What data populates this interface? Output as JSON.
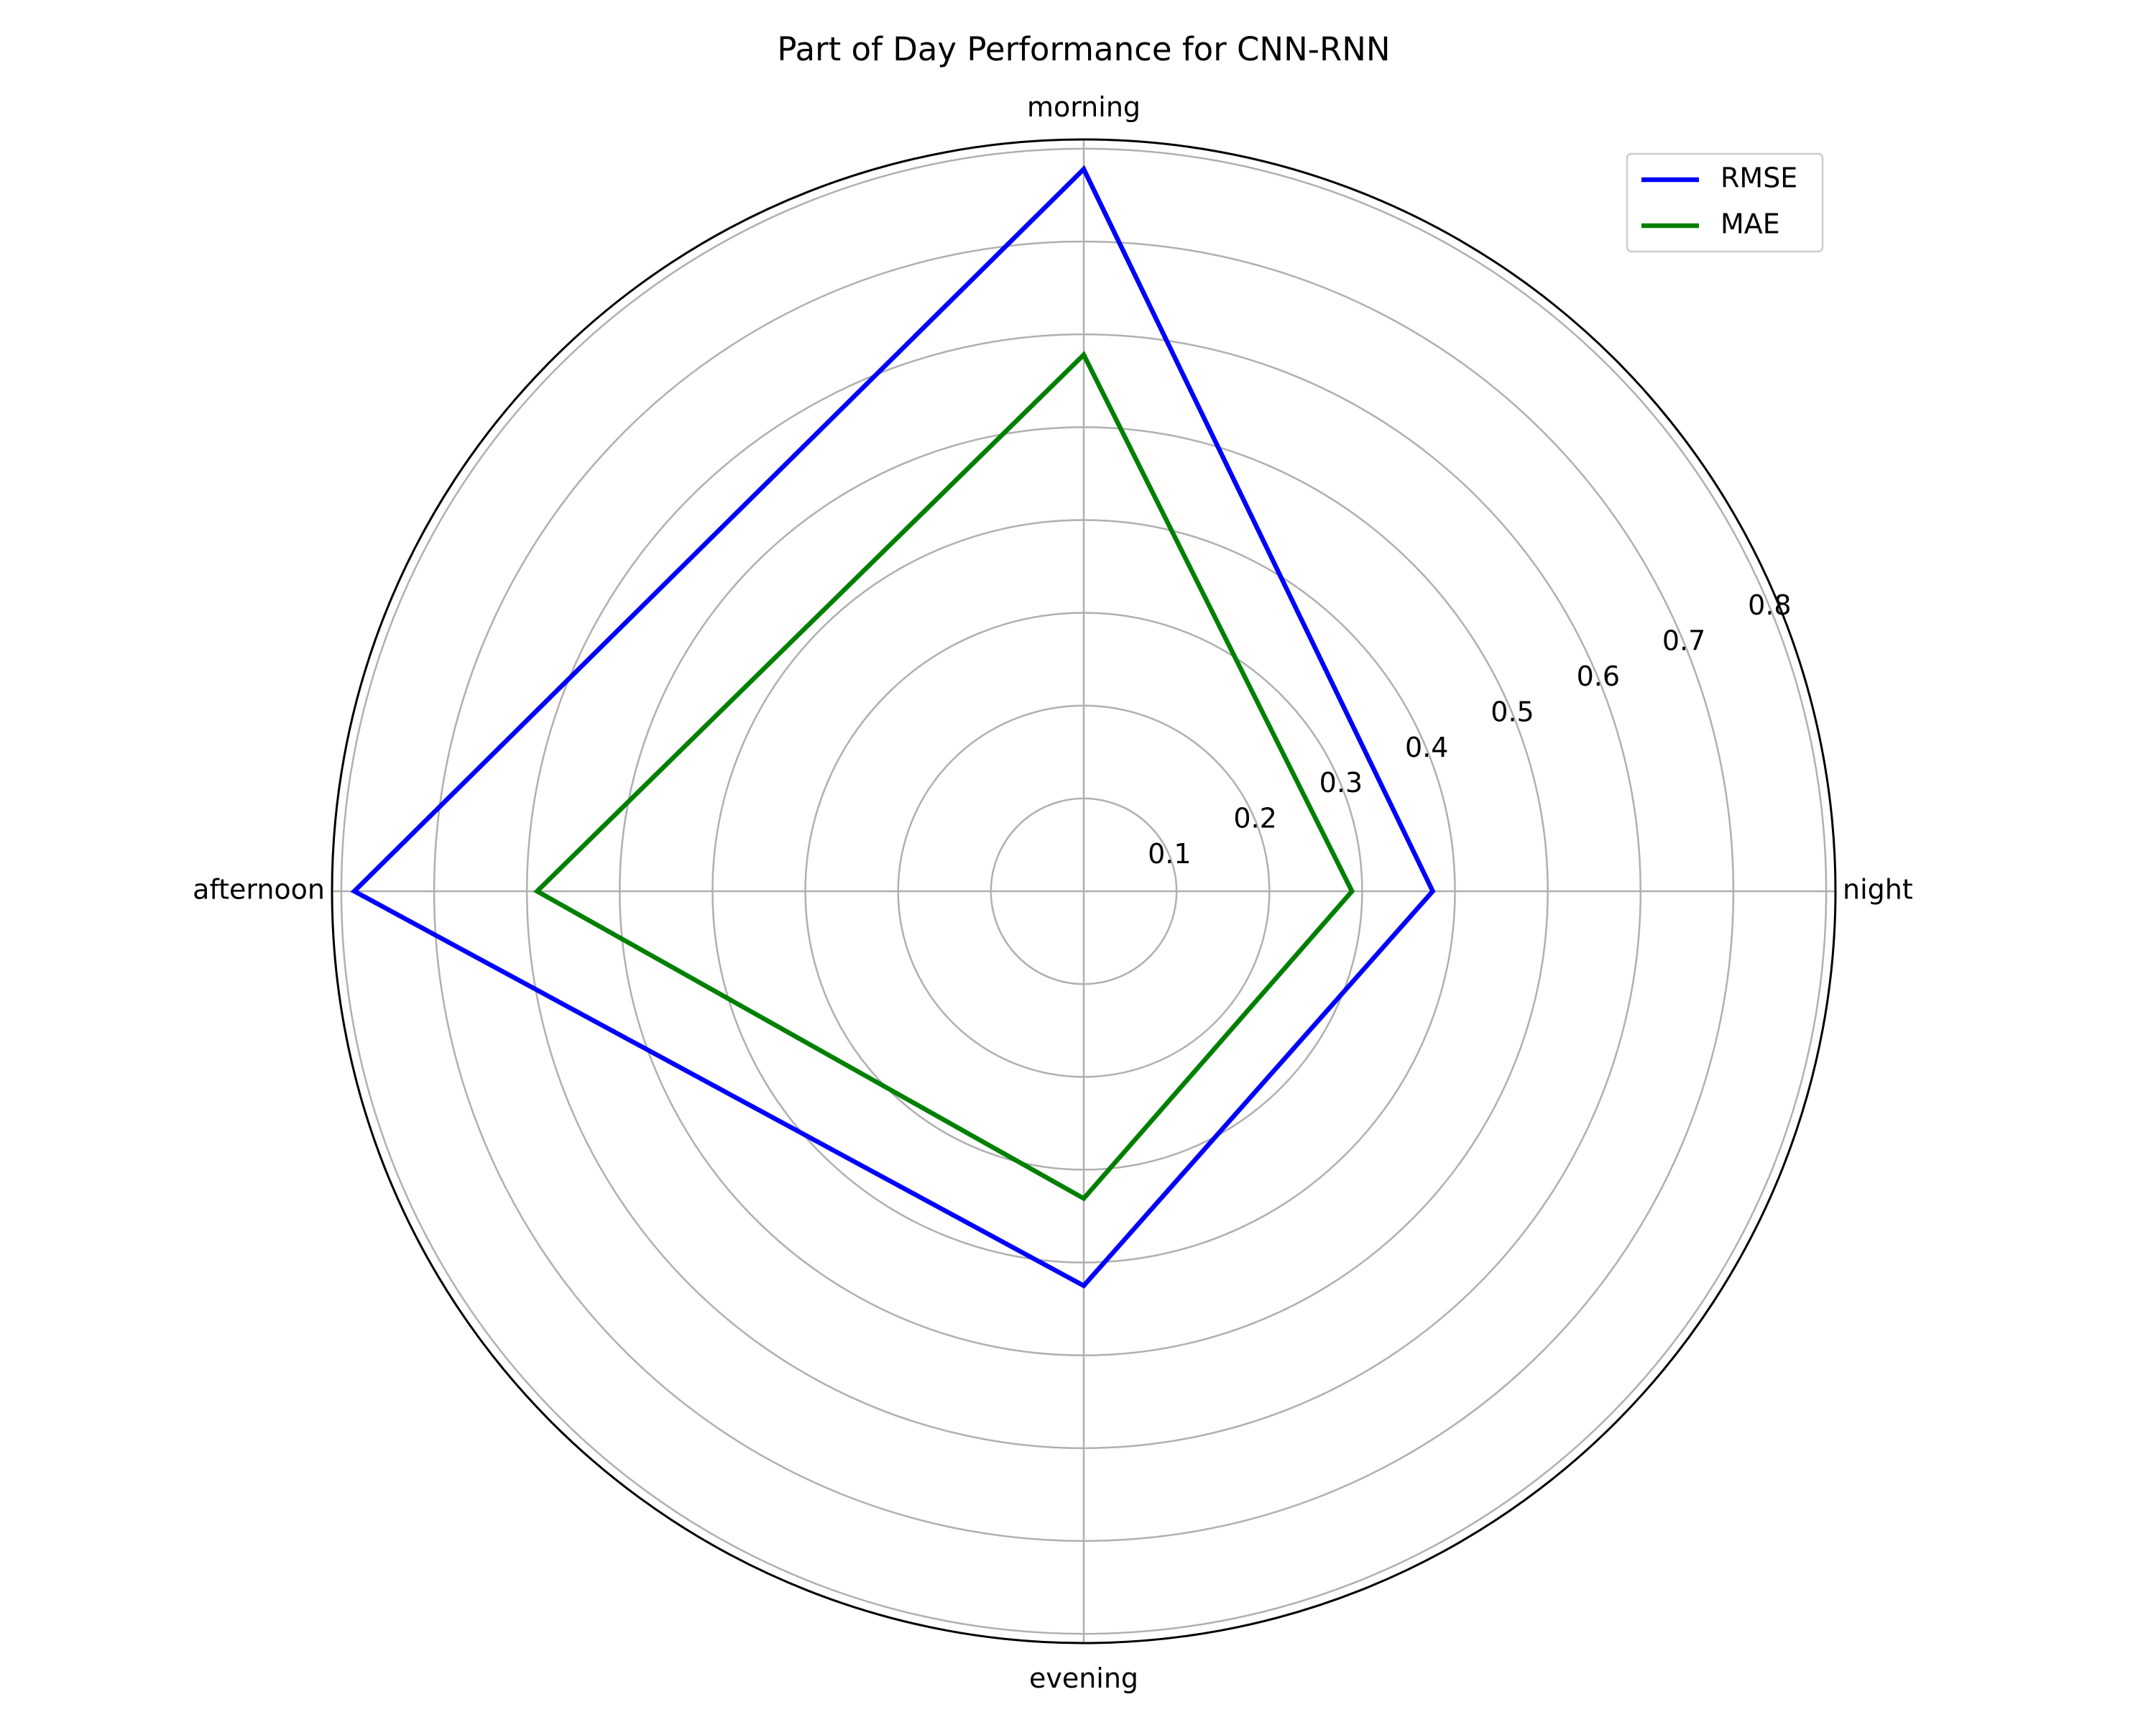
{
  "chart_data": {
    "type": "radar",
    "title": "Part of Day Performance for CNN-RNN",
    "categories": [
      "night",
      "morning",
      "afternoon",
      "evening"
    ],
    "radial_ticks": [
      "0.1",
      "0.2",
      "0.3",
      "0.4",
      "0.5",
      "0.6",
      "0.7",
      "0.8"
    ],
    "rlim": [
      0,
      0.81
    ],
    "grid": true,
    "legend_position": "top-right",
    "series": [
      {
        "name": "RMSE",
        "color": "#0000ff",
        "values": [
          0.376,
          0.778,
          0.786,
          0.425
        ]
      },
      {
        "name": "MAE",
        "color": "#008000",
        "values": [
          0.289,
          0.578,
          0.589,
          0.331
        ]
      }
    ]
  }
}
